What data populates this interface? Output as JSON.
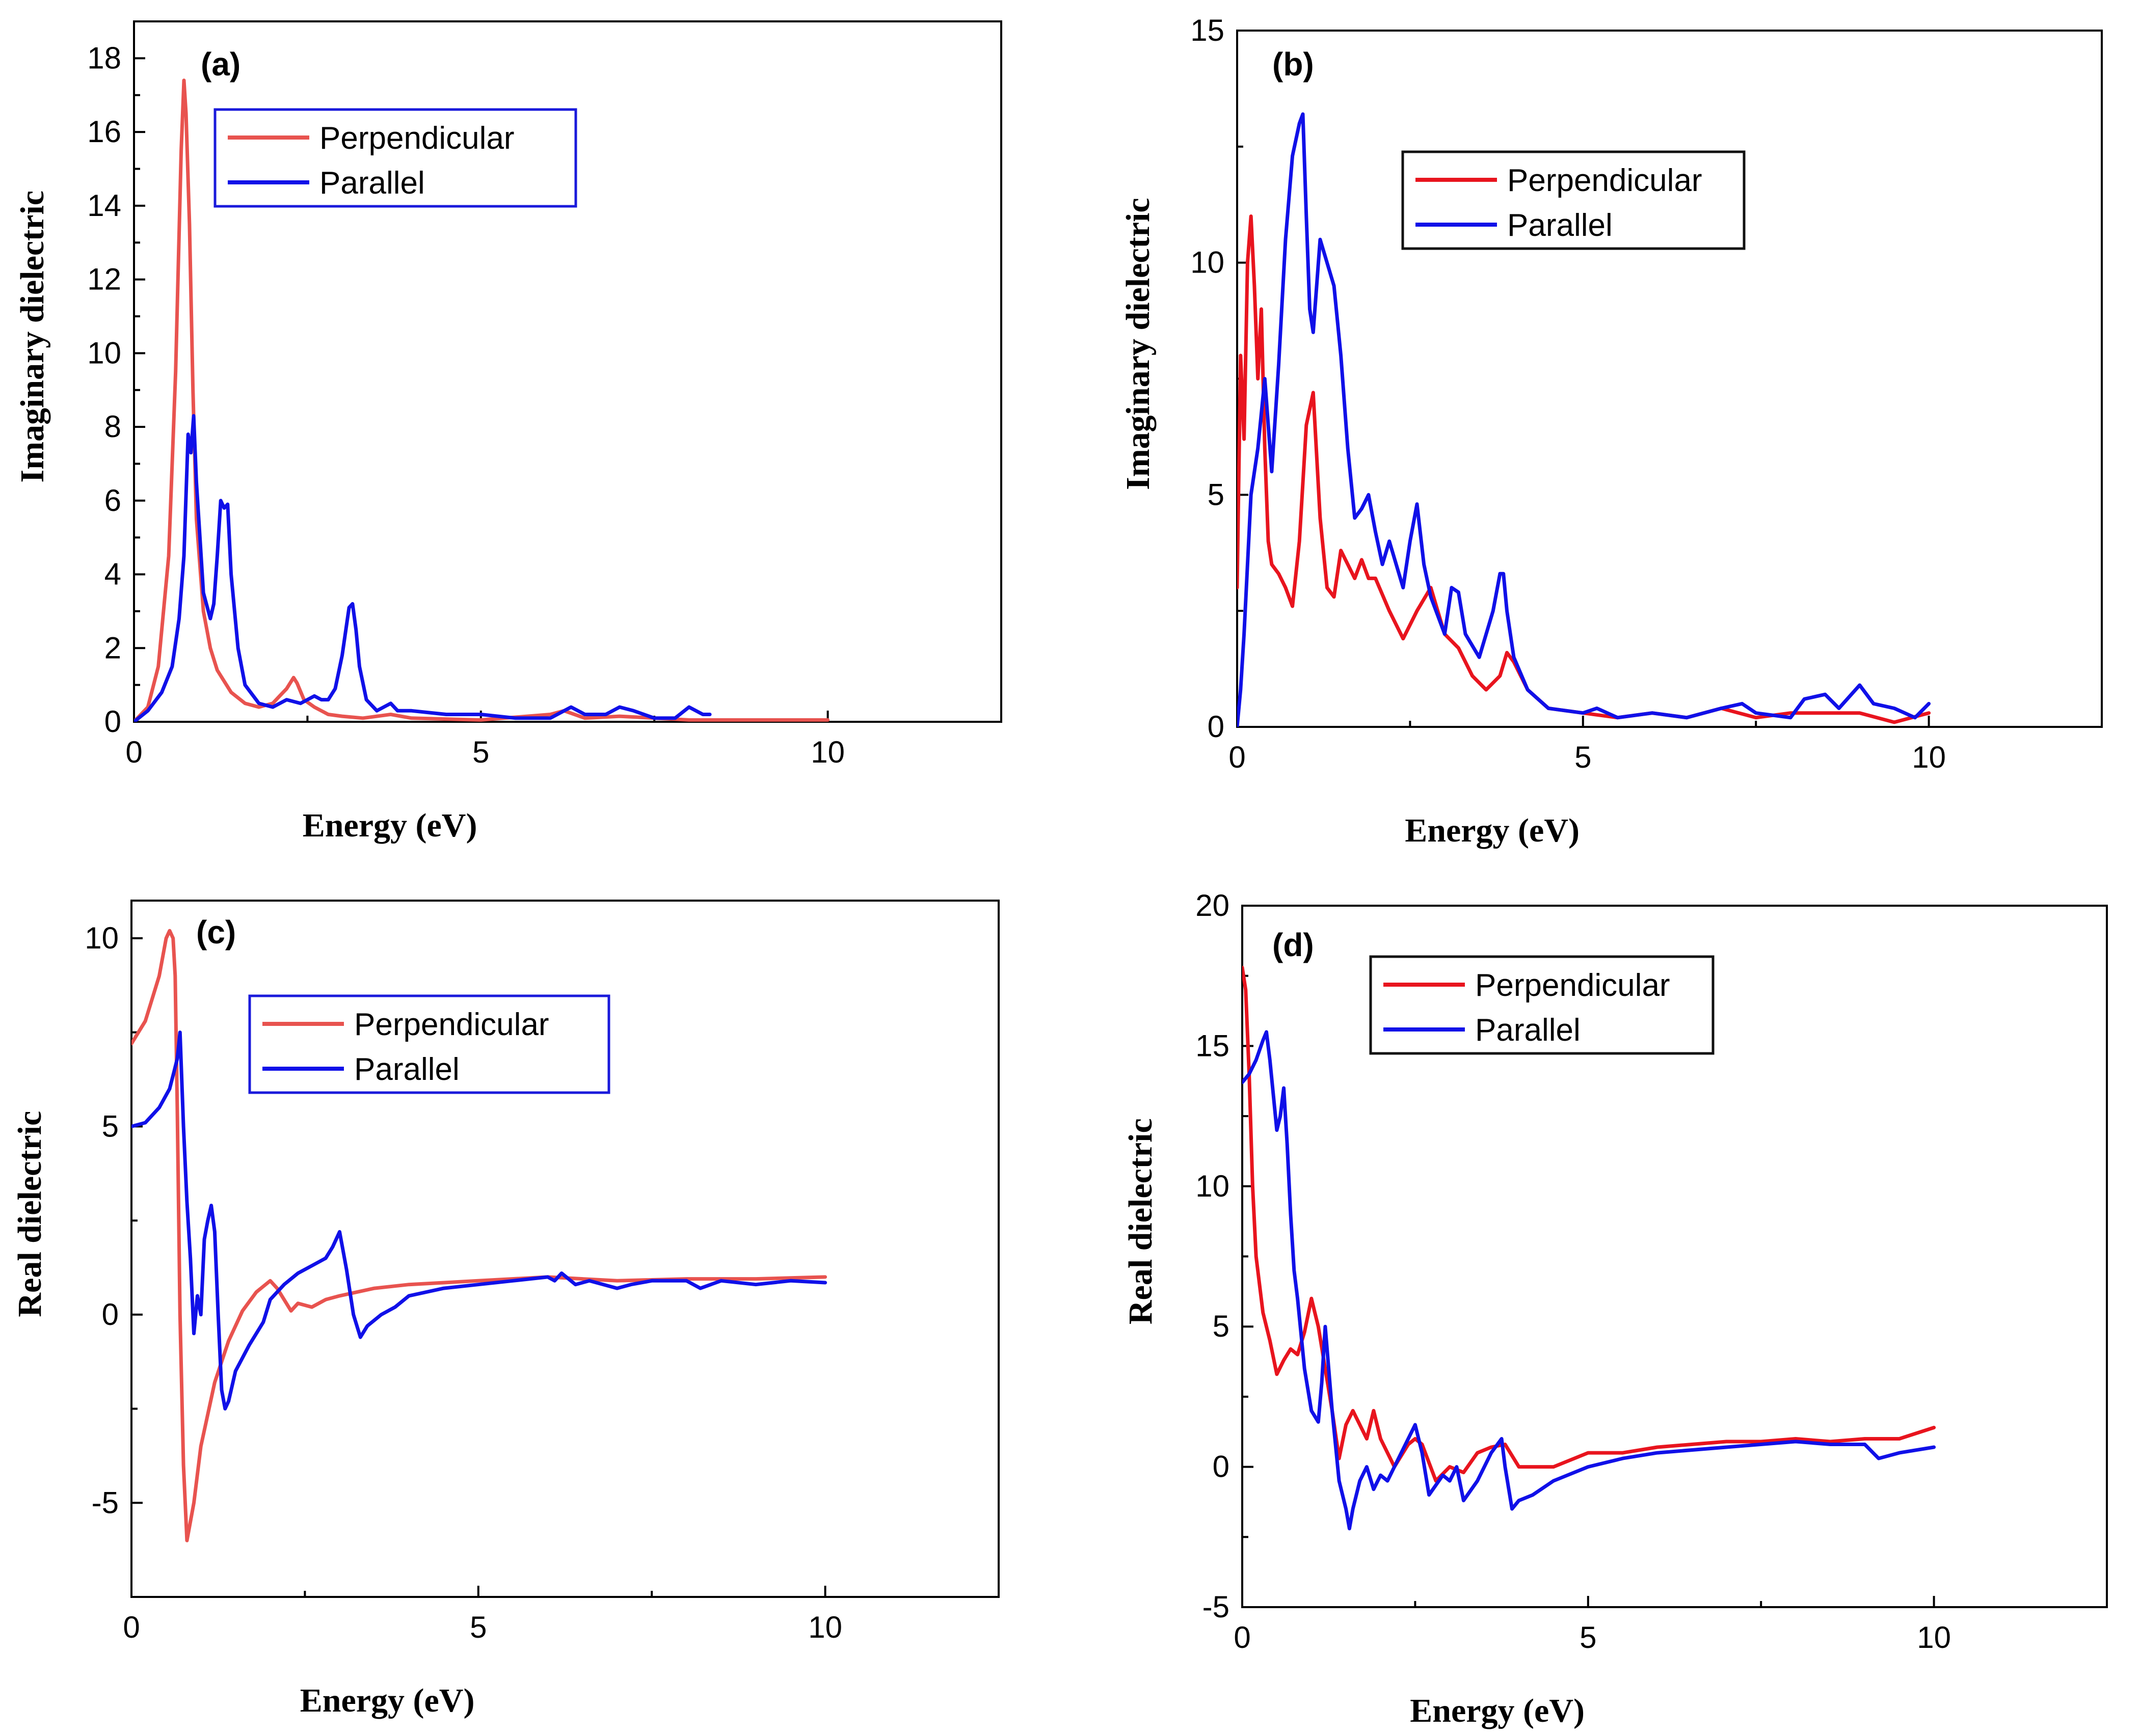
{
  "chart_data": [
    {
      "type": "line",
      "panel": "(a)",
      "xlabel": "Energy (eV)",
      "ylabel": "Imaginary dielectric",
      "xlim": [
        0,
        12.5
      ],
      "ylim": [
        0,
        19
      ],
      "xticks": [
        0,
        5,
        10
      ],
      "yticks": [
        0,
        2,
        4,
        6,
        8,
        10,
        12,
        14,
        16,
        18
      ],
      "legend": {
        "placement": "top-left",
        "border_color": "#1a1adb"
      },
      "series": [
        {
          "name": "Perpendicular",
          "color": "#e8534f",
          "x": [
            0,
            0.2,
            0.35,
            0.5,
            0.6,
            0.68,
            0.72,
            0.75,
            0.8,
            0.85,
            0.9,
            1.0,
            1.1,
            1.2,
            1.4,
            1.6,
            1.8,
            2.0,
            2.1,
            2.2,
            2.3,
            2.35,
            2.45,
            2.6,
            2.8,
            3.0,
            3.3,
            3.7,
            4.0,
            5.0,
            6.0,
            6.2,
            6.5,
            7.0,
            8.0,
            9.0,
            10.0
          ],
          "y": [
            0,
            0.4,
            1.5,
            4.5,
            9.5,
            15.5,
            17.4,
            16.5,
            13.5,
            9.0,
            5.5,
            3.0,
            2.0,
            1.4,
            0.8,
            0.5,
            0.4,
            0.5,
            0.7,
            0.9,
            1.2,
            1.05,
            0.6,
            0.4,
            0.2,
            0.15,
            0.1,
            0.2,
            0.1,
            0.05,
            0.2,
            0.3,
            0.1,
            0.15,
            0.05,
            0.05,
            0.05
          ]
        },
        {
          "name": "Parallel",
          "color": "#1010e8",
          "x": [
            0,
            0.2,
            0.4,
            0.55,
            0.65,
            0.72,
            0.78,
            0.82,
            0.86,
            0.9,
            0.95,
            1.0,
            1.1,
            1.15,
            1.2,
            1.25,
            1.3,
            1.35,
            1.4,
            1.5,
            1.6,
            1.8,
            2.0,
            2.2,
            2.4,
            2.6,
            2.7,
            2.8,
            2.9,
            3.0,
            3.1,
            3.15,
            3.2,
            3.25,
            3.35,
            3.5,
            3.7,
            3.8,
            4.0,
            4.5,
            5.0,
            5.5,
            6.0,
            6.3,
            6.5,
            6.8,
            7.0,
            7.2,
            7.5,
            7.8,
            8.0,
            8.2,
            8.3
          ],
          "y": [
            0,
            0.3,
            0.8,
            1.5,
            2.8,
            4.5,
            7.8,
            7.3,
            8.3,
            6.5,
            5.0,
            3.5,
            2.8,
            3.2,
            4.5,
            6.0,
            5.8,
            5.9,
            4.0,
            2.0,
            1.0,
            0.5,
            0.4,
            0.6,
            0.5,
            0.7,
            0.6,
            0.6,
            0.9,
            1.8,
            3.1,
            3.2,
            2.5,
            1.5,
            0.6,
            0.3,
            0.5,
            0.3,
            0.3,
            0.2,
            0.2,
            0.1,
            0.1,
            0.4,
            0.2,
            0.2,
            0.4,
            0.3,
            0.1,
            0.1,
            0.4,
            0.2,
            0.2
          ]
        }
      ]
    },
    {
      "type": "line",
      "panel": "(b)",
      "xlabel": "Energy (eV)",
      "ylabel": "Imaginary dielectric",
      "xlim": [
        0,
        12.5
      ],
      "ylim": [
        0,
        15
      ],
      "xticks": [
        0,
        5,
        10
      ],
      "yticks": [
        0,
        5,
        10,
        15
      ],
      "legend": {
        "placement": "top-center",
        "border_color": "#111111"
      },
      "series": [
        {
          "name": "Perpendicular",
          "color": "#e8141e",
          "x": [
            0,
            0.05,
            0.1,
            0.15,
            0.2,
            0.25,
            0.3,
            0.35,
            0.4,
            0.45,
            0.5,
            0.6,
            0.7,
            0.8,
            0.9,
            1.0,
            1.1,
            1.2,
            1.3,
            1.4,
            1.5,
            1.6,
            1.7,
            1.8,
            1.9,
            2.0,
            2.2,
            2.4,
            2.6,
            2.8,
            3.0,
            3.2,
            3.4,
            3.6,
            3.8,
            3.9,
            4.0,
            4.2,
            4.5,
            5.0,
            5.5,
            6.0,
            6.5,
            7.0,
            7.5,
            8.0,
            8.5,
            9.0,
            9.5,
            10.0
          ],
          "y": [
            3.0,
            8.0,
            6.2,
            10.0,
            11.0,
            9.5,
            7.5,
            9.0,
            6.0,
            4.0,
            3.5,
            3.3,
            3.0,
            2.6,
            4.0,
            6.5,
            7.2,
            4.5,
            3.0,
            2.8,
            3.8,
            3.5,
            3.2,
            3.6,
            3.2,
            3.2,
            2.5,
            1.9,
            2.5,
            3.0,
            2.0,
            1.7,
            1.1,
            0.8,
            1.1,
            1.6,
            1.4,
            0.8,
            0.4,
            0.3,
            0.2,
            0.3,
            0.2,
            0.4,
            0.2,
            0.3,
            0.3,
            0.3,
            0.1,
            0.3
          ]
        },
        {
          "name": "Parallel",
          "color": "#1010e8",
          "x": [
            0,
            0.05,
            0.1,
            0.15,
            0.2,
            0.3,
            0.4,
            0.45,
            0.5,
            0.6,
            0.7,
            0.8,
            0.9,
            0.95,
            1.0,
            1.05,
            1.1,
            1.2,
            1.3,
            1.4,
            1.5,
            1.6,
            1.7,
            1.8,
            1.9,
            2.0,
            2.1,
            2.2,
            2.3,
            2.4,
            2.5,
            2.6,
            2.7,
            2.8,
            3.0,
            3.1,
            3.2,
            3.3,
            3.5,
            3.7,
            3.8,
            3.85,
            3.9,
            4.0,
            4.2,
            4.5,
            5.0,
            5.2,
            5.5,
            6.0,
            6.5,
            7.0,
            7.3,
            7.5,
            8.0,
            8.2,
            8.5,
            8.7,
            9.0,
            9.2,
            9.5,
            9.8,
            10.0
          ],
          "y": [
            0,
            0.8,
            2.0,
            3.5,
            5.0,
            6.0,
            7.5,
            6.5,
            5.5,
            7.8,
            10.5,
            12.3,
            13.0,
            13.2,
            11.0,
            9.0,
            8.5,
            10.5,
            10.0,
            9.5,
            8.0,
            6.0,
            4.5,
            4.7,
            5.0,
            4.2,
            3.5,
            4.0,
            3.5,
            3.0,
            4.0,
            4.8,
            3.5,
            2.8,
            2.0,
            3.0,
            2.9,
            2.0,
            1.5,
            2.5,
            3.3,
            3.3,
            2.5,
            1.5,
            0.8,
            0.4,
            0.3,
            0.4,
            0.2,
            0.3,
            0.2,
            0.4,
            0.5,
            0.3,
            0.2,
            0.6,
            0.7,
            0.4,
            0.9,
            0.5,
            0.4,
            0.2,
            0.5
          ]
        }
      ]
    },
    {
      "type": "line",
      "panel": "(c)",
      "xlabel": "Energy (eV)",
      "ylabel": "Real dielectric",
      "xlim": [
        0,
        12.5
      ],
      "ylim": [
        -7.5,
        11
      ],
      "xticks": [
        0,
        5,
        10
      ],
      "yticks": [
        -5,
        0,
        5,
        10
      ],
      "legend": {
        "placement": "top-left",
        "border_color": "#1a1adb"
      },
      "series": [
        {
          "name": "Perpendicular",
          "color": "#e8534f",
          "x": [
            0,
            0.2,
            0.4,
            0.5,
            0.55,
            0.6,
            0.63,
            0.66,
            0.7,
            0.75,
            0.8,
            0.9,
            1.0,
            1.2,
            1.4,
            1.6,
            1.8,
            2.0,
            2.1,
            2.2,
            2.3,
            2.4,
            2.6,
            2.8,
            3.0,
            3.5,
            4.0,
            5.0,
            6.0,
            7.0,
            8.0,
            9.0,
            10.0
          ],
          "y": [
            7.2,
            7.8,
            9.0,
            10.0,
            10.2,
            10.0,
            9.0,
            5.5,
            0.0,
            -4.0,
            -6.0,
            -5.0,
            -3.5,
            -1.8,
            -0.7,
            0.1,
            0.6,
            0.9,
            0.7,
            0.4,
            0.1,
            0.3,
            0.2,
            0.4,
            0.5,
            0.7,
            0.8,
            0.9,
            1.0,
            0.9,
            0.95,
            0.95,
            1.0
          ]
        },
        {
          "name": "Parallel",
          "color": "#1010e8",
          "x": [
            0,
            0.2,
            0.4,
            0.55,
            0.62,
            0.66,
            0.7,
            0.75,
            0.8,
            0.85,
            0.9,
            0.95,
            1.0,
            1.05,
            1.1,
            1.15,
            1.2,
            1.25,
            1.3,
            1.35,
            1.4,
            1.5,
            1.7,
            1.9,
            2.0,
            2.2,
            2.4,
            2.6,
            2.8,
            2.9,
            3.0,
            3.1,
            3.2,
            3.3,
            3.4,
            3.6,
            3.8,
            4.0,
            4.5,
            5.0,
            5.5,
            6.0,
            6.1,
            6.2,
            6.4,
            6.6,
            7.0,
            7.2,
            7.5,
            8.0,
            8.2,
            8.5,
            9.0,
            9.5,
            10.0
          ],
          "y": [
            5.0,
            5.1,
            5.5,
            6.0,
            6.5,
            6.8,
            7.5,
            5.0,
            3.0,
            1.5,
            -0.5,
            0.5,
            0.0,
            2.0,
            2.5,
            2.9,
            2.2,
            0.0,
            -2.0,
            -2.5,
            -2.3,
            -1.5,
            -0.8,
            -0.2,
            0.4,
            0.8,
            1.1,
            1.3,
            1.5,
            1.8,
            2.2,
            1.2,
            0.0,
            -0.6,
            -0.3,
            0.0,
            0.2,
            0.5,
            0.7,
            0.8,
            0.9,
            1.0,
            0.9,
            1.1,
            0.8,
            0.9,
            0.7,
            0.8,
            0.9,
            0.9,
            0.7,
            0.9,
            0.8,
            0.9,
            0.85
          ]
        }
      ]
    },
    {
      "type": "line",
      "panel": "(d)",
      "xlabel": "Energy (eV)",
      "ylabel": "Real dielectric",
      "xlim": [
        0,
        12.5
      ],
      "ylim": [
        -5,
        20
      ],
      "xticks": [
        0,
        5,
        10
      ],
      "yticks": [
        -5,
        0,
        5,
        10,
        15,
        20
      ],
      "legend": {
        "placement": "top-left",
        "border_color": "#111111"
      },
      "series": [
        {
          "name": "Perpendicular",
          "color": "#e8141e",
          "x": [
            0,
            0.05,
            0.1,
            0.15,
            0.2,
            0.3,
            0.4,
            0.5,
            0.6,
            0.7,
            0.8,
            0.9,
            1.0,
            1.05,
            1.1,
            1.2,
            1.3,
            1.4,
            1.5,
            1.6,
            1.7,
            1.8,
            1.9,
            2.0,
            2.2,
            2.4,
            2.5,
            2.6,
            2.8,
            3.0,
            3.2,
            3.4,
            3.6,
            3.8,
            4.0,
            4.5,
            5.0,
            5.5,
            6.0,
            6.5,
            7.0,
            7.5,
            8.0,
            8.5,
            9.0,
            9.5,
            10.0
          ],
          "y": [
            17.8,
            17.0,
            14.0,
            10.0,
            7.5,
            5.5,
            4.5,
            3.3,
            3.8,
            4.2,
            4.0,
            4.8,
            6.0,
            5.5,
            5.0,
            3.5,
            2.0,
            0.3,
            1.5,
            2.0,
            1.5,
            1.0,
            2.0,
            1.0,
            0.0,
            0.8,
            1.0,
            0.8,
            -0.5,
            0.0,
            -0.2,
            0.5,
            0.7,
            0.8,
            0.0,
            0.0,
            0.5,
            0.5,
            0.7,
            0.8,
            0.9,
            0.9,
            1.0,
            0.9,
            1.0,
            1.0,
            1.4
          ]
        },
        {
          "name": "Parallel",
          "color": "#1010e8",
          "x": [
            0,
            0.1,
            0.2,
            0.3,
            0.35,
            0.4,
            0.5,
            0.55,
            0.6,
            0.65,
            0.7,
            0.75,
            0.8,
            0.9,
            1.0,
            1.1,
            1.15,
            1.2,
            1.3,
            1.4,
            1.5,
            1.55,
            1.6,
            1.7,
            1.8,
            1.9,
            2.0,
            2.1,
            2.3,
            2.5,
            2.6,
            2.7,
            2.9,
            3.0,
            3.1,
            3.2,
            3.4,
            3.6,
            3.75,
            3.8,
            3.9,
            4.0,
            4.2,
            4.5,
            5.0,
            5.5,
            6.0,
            7.0,
            7.5,
            8.0,
            8.5,
            9.0,
            9.2,
            9.5,
            10.0
          ],
          "y": [
            13.7,
            14.0,
            14.5,
            15.2,
            15.5,
            14.5,
            12.0,
            12.5,
            13.5,
            11.5,
            9.0,
            7.0,
            6.0,
            3.5,
            2.0,
            1.6,
            3.0,
            5.0,
            2.0,
            -0.5,
            -1.5,
            -2.2,
            -1.5,
            -0.5,
            0.0,
            -0.8,
            -0.3,
            -0.5,
            0.5,
            1.5,
            0.5,
            -1.0,
            -0.3,
            -0.5,
            0.0,
            -1.2,
            -0.5,
            0.5,
            1.0,
            0.0,
            -1.5,
            -1.2,
            -1.0,
            -0.5,
            0.0,
            0.3,
            0.5,
            0.7,
            0.8,
            0.9,
            0.8,
            0.8,
            0.3,
            0.5,
            0.7
          ]
        }
      ]
    }
  ]
}
